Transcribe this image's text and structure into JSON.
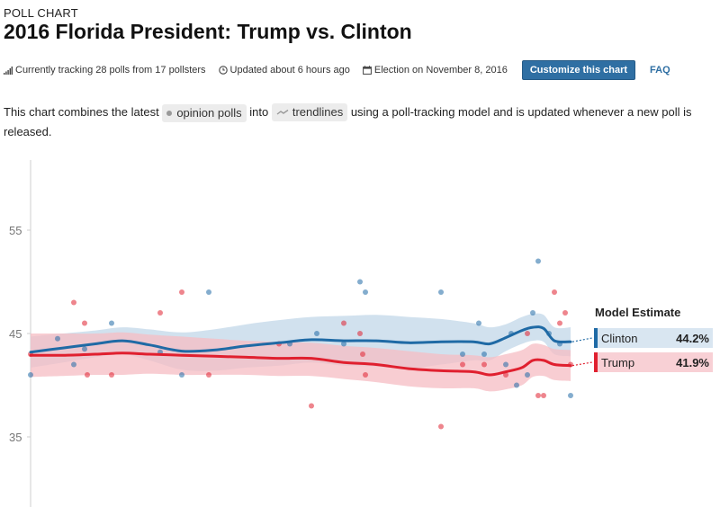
{
  "header": {
    "eyebrow": "POLL CHART",
    "title": "2016 Florida President: Trump vs. Clinton"
  },
  "meta": {
    "tracking": "Currently tracking 28 polls from 17 pollsters",
    "updated": "Updated about 6 hours ago",
    "election": "Election on November 8, 2016",
    "customize_label": "Customize this chart",
    "faq_label": "FAQ"
  },
  "intro": {
    "part1": "This chart combines the latest",
    "polls_label": "opinion polls",
    "part2": "into",
    "trend_label": "trendlines",
    "part3": "using a poll-tracking model and is updated whenever a new poll is released."
  },
  "colors": {
    "clinton": "#1f6aa5",
    "trump": "#e0202f",
    "clinton_band": "#c9dceb",
    "trump_band": "#f5bcc3"
  },
  "chart_data": {
    "type": "line",
    "title": "",
    "xlabel": "",
    "ylabel": "",
    "ylim": [
      32.5,
      57
    ],
    "yticks": [
      35,
      45,
      55
    ],
    "x_range": [
      0,
      100
    ],
    "legend_title": "Model Estimate",
    "series": [
      {
        "name": "Clinton",
        "estimate_label": "44.2%",
        "x": [
          0,
          6,
          12,
          17,
          22,
          28,
          34,
          40,
          46,
          52,
          58,
          64,
          70,
          76,
          82,
          85,
          88,
          91,
          93,
          95,
          97,
          100
        ],
        "trend": [
          43.2,
          43.6,
          44.0,
          44.3,
          43.9,
          43.3,
          43.4,
          43.8,
          44.1,
          44.4,
          44.3,
          44.3,
          44.1,
          44.2,
          44.2,
          44.0,
          44.6,
          45.3,
          45.6,
          45.5,
          44.3,
          44.2
        ],
        "upper": [
          44.7,
          45.0,
          45.3,
          45.6,
          45.4,
          45.1,
          45.4,
          45.9,
          46.3,
          46.6,
          46.7,
          46.8,
          46.6,
          46.4,
          46.0,
          45.6,
          45.9,
          46.6,
          46.9,
          46.8,
          45.6,
          45.6
        ],
        "lower": [
          41.7,
          42.2,
          42.7,
          43.0,
          42.4,
          41.5,
          41.4,
          41.7,
          41.9,
          42.2,
          41.9,
          41.8,
          41.6,
          42.0,
          42.4,
          42.4,
          43.3,
          44.0,
          44.3,
          44.2,
          43.0,
          42.8
        ],
        "polls": [
          {
            "x": 0,
            "y": 41.0
          },
          {
            "x": 5,
            "y": 44.5
          },
          {
            "x": 8,
            "y": 42.0
          },
          {
            "x": 10,
            "y": 43.5
          },
          {
            "x": 15,
            "y": 46.0
          },
          {
            "x": 24,
            "y": 43.2
          },
          {
            "x": 28,
            "y": 41.0
          },
          {
            "x": 33,
            "y": 49.0
          },
          {
            "x": 48,
            "y": 44.0
          },
          {
            "x": 53,
            "y": 45.0
          },
          {
            "x": 58,
            "y": 44.0
          },
          {
            "x": 61,
            "y": 50.0
          },
          {
            "x": 62,
            "y": 49.0
          },
          {
            "x": 76,
            "y": 49.0
          },
          {
            "x": 80,
            "y": 43.0
          },
          {
            "x": 83,
            "y": 46.0
          },
          {
            "x": 84,
            "y": 43.0
          },
          {
            "x": 88,
            "y": 42.0
          },
          {
            "x": 89,
            "y": 45.0
          },
          {
            "x": 90,
            "y": 40.0
          },
          {
            "x": 92,
            "y": 41.0
          },
          {
            "x": 93,
            "y": 47.0
          },
          {
            "x": 94,
            "y": 52.0
          },
          {
            "x": 96,
            "y": 45.0
          },
          {
            "x": 98,
            "y": 44.0
          },
          {
            "x": 100,
            "y": 39.0
          }
        ]
      },
      {
        "name": "Trump",
        "estimate_label": "41.9%",
        "x": [
          0,
          6,
          12,
          17,
          22,
          28,
          34,
          40,
          46,
          52,
          58,
          64,
          70,
          76,
          82,
          85,
          88,
          91,
          93,
          95,
          97,
          100
        ],
        "trend": [
          42.9,
          42.9,
          43.0,
          43.1,
          43.0,
          42.9,
          42.8,
          42.7,
          42.6,
          42.6,
          42.2,
          42.0,
          41.6,
          41.4,
          41.3,
          41.0,
          41.3,
          41.7,
          42.4,
          42.4,
          42.0,
          41.9
        ],
        "upper": [
          45.0,
          45.0,
          45.0,
          45.1,
          44.9,
          44.7,
          44.5,
          44.3,
          44.2,
          44.1,
          43.8,
          43.6,
          43.3,
          43.0,
          42.9,
          42.7,
          43.0,
          43.4,
          44.0,
          43.9,
          43.5,
          43.4
        ],
        "lower": [
          40.8,
          40.9,
          41.0,
          41.0,
          41.1,
          41.0,
          41.0,
          41.0,
          40.9,
          40.9,
          40.6,
          40.3,
          39.9,
          39.7,
          39.7,
          39.4,
          39.6,
          40.0,
          40.8,
          40.9,
          40.5,
          40.4
        ],
        "polls": [
          {
            "x": 0,
            "y": 43.0
          },
          {
            "x": 8,
            "y": 48.0
          },
          {
            "x": 10,
            "y": 46.0
          },
          {
            "x": 10.5,
            "y": 41.0
          },
          {
            "x": 15,
            "y": 41.0
          },
          {
            "x": 24,
            "y": 47.0
          },
          {
            "x": 28,
            "y": 49.0
          },
          {
            "x": 33,
            "y": 41.0
          },
          {
            "x": 46,
            "y": 44.0
          },
          {
            "x": 52,
            "y": 38.0
          },
          {
            "x": 58,
            "y": 46.0
          },
          {
            "x": 61,
            "y": 45.0
          },
          {
            "x": 61.5,
            "y": 43.0
          },
          {
            "x": 62,
            "y": 41.0
          },
          {
            "x": 76,
            "y": 36.0
          },
          {
            "x": 80,
            "y": 42.0
          },
          {
            "x": 84,
            "y": 42.0
          },
          {
            "x": 88,
            "y": 41.0
          },
          {
            "x": 92,
            "y": 45.0
          },
          {
            "x": 94,
            "y": 39.0
          },
          {
            "x": 95,
            "y": 39.0
          },
          {
            "x": 97,
            "y": 49.0
          },
          {
            "x": 98,
            "y": 46.0
          },
          {
            "x": 99,
            "y": 47.0
          },
          {
            "x": 100,
            "y": 42.0
          }
        ]
      }
    ]
  }
}
